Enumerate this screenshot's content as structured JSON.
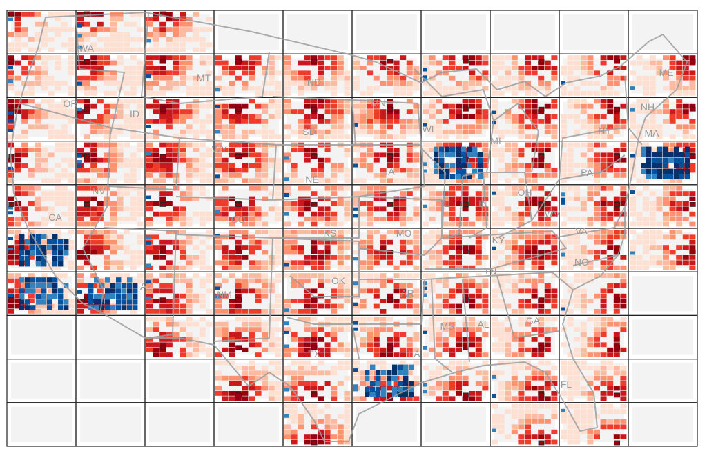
{
  "grid": {
    "rows": 10,
    "cols": 10
  },
  "state_labels": [
    "WA",
    "MT",
    "ND",
    "MN",
    "ME",
    "OR",
    "ID",
    "NH",
    "SD",
    "WI",
    "MI",
    "NY",
    "MA",
    "WY",
    "NE",
    "IA",
    "PA",
    "NV",
    "CA",
    "IL",
    "IN",
    "OH",
    "WV",
    "CO",
    "KS",
    "MO",
    "KY",
    "VA",
    "NC",
    "TN",
    "AZ",
    "OK",
    "NM",
    "AR",
    "MS",
    "AL",
    "GA",
    "LA",
    "FL",
    "TX"
  ],
  "legend": {
    "positive_color": "#b2182b",
    "negative_color": "#08519c",
    "description": "positive correlations shown in red, negative in blue"
  },
  "colors": {
    "red_scale": [
      "#fee0d2",
      "#fcbba1",
      "#fc9272",
      "#ef3b2c",
      "#cb181d",
      "#99000d"
    ],
    "blue_scale": [
      "#c6dbef",
      "#6baed6",
      "#3182bd",
      "#08519c",
      "#08306b"
    ],
    "state_borders": "#9e9e9e",
    "cell_borders": "#222222"
  }
}
